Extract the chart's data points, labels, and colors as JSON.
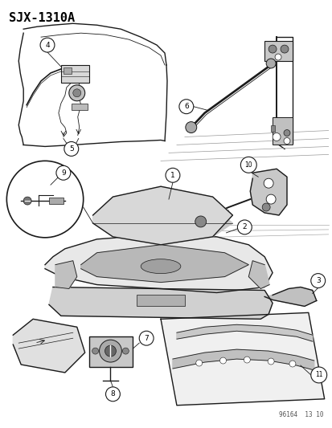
{
  "bg_color": "#ffffff",
  "line_color": "#1a1a1a",
  "gray_light": "#cccccc",
  "gray_mid": "#999999",
  "gray_dark": "#555555",
  "fig_width": 4.14,
  "fig_height": 5.33,
  "dpi": 100,
  "header": "SJX-1310A",
  "footer": "96164  13 10",
  "lw_main": 1.0,
  "lw_thin": 0.6,
  "lw_thick": 1.4
}
